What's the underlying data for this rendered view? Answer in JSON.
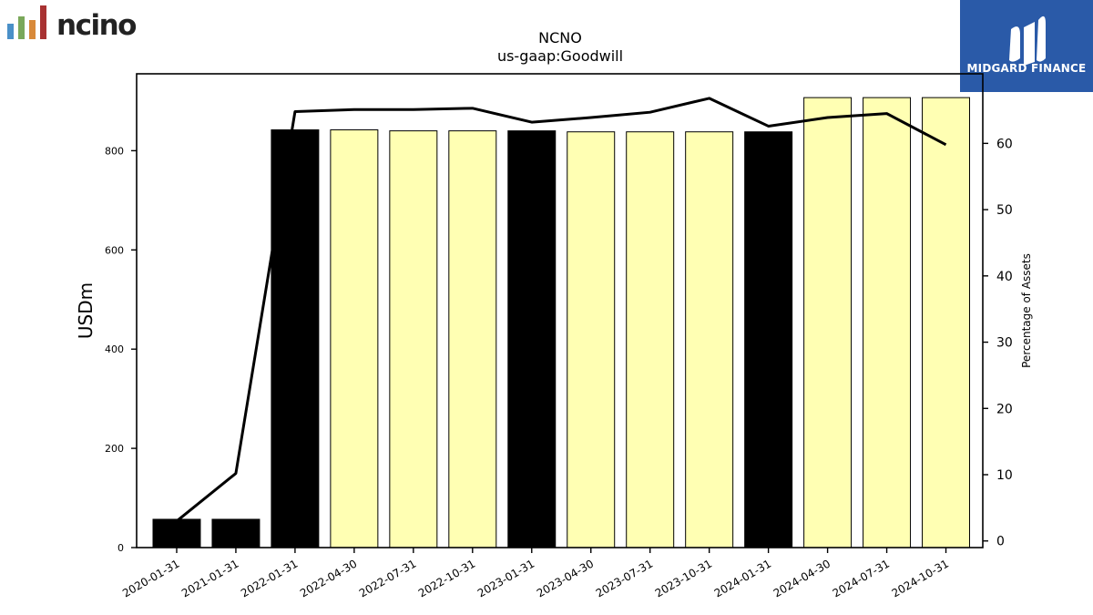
{
  "brand": {
    "left_logo_text": "ncino",
    "right_logo_text": "MIDGARD FINANCE"
  },
  "chart_data": {
    "type": "bar",
    "title": "NCNO",
    "subtitle": "us-gaap:Goodwill",
    "ylabel": "USDm",
    "y2label": "Percentage of Assets",
    "categories": [
      "2020-01-31",
      "2021-01-31",
      "2022-01-31",
      "2022-04-30",
      "2022-07-31",
      "2022-10-31",
      "2023-01-31",
      "2023-04-30",
      "2023-07-31",
      "2023-10-31",
      "2024-01-31",
      "2024-04-30",
      "2024-07-31",
      "2024-10-31"
    ],
    "values": [
      57,
      57,
      842,
      842,
      840,
      840,
      840,
      838,
      838,
      838,
      838,
      907,
      907,
      907
    ],
    "bar_colors": [
      "#000000",
      "#000000",
      "#000000",
      "#ffffb3",
      "#ffffb3",
      "#ffffb3",
      "#000000",
      "#ffffb3",
      "#ffffb3",
      "#ffffb3",
      "#000000",
      "#ffffb3",
      "#ffffb3",
      "#ffffb3"
    ],
    "line_values": [
      3,
      10.2,
      64.8,
      65.1,
      65.1,
      65.3,
      63.2,
      63.9,
      64.7,
      66.8,
      62.6,
      63.9,
      64.5,
      59.8
    ],
    "ylim": [
      0,
      955
    ],
    "y2lim": [
      -1,
      70.5
    ],
    "yticks": [
      0,
      200,
      400,
      600,
      800
    ],
    "y2ticks": [
      0,
      10,
      20,
      30,
      40,
      50,
      60
    ],
    "line_color": "#000000",
    "legend": "none",
    "grid": false
  }
}
